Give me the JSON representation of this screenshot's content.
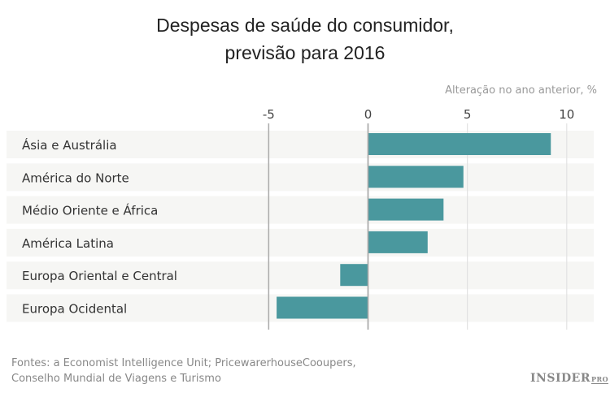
{
  "chart_data": {
    "type": "bar",
    "orientation": "horizontal",
    "title_lines": [
      "Despesas de saúde do consumidor,",
      "previsão para 2016"
    ],
    "xlabel": "Alteração no ano anterior, %",
    "xlim": [
      -5,
      10
    ],
    "xticks": [
      -5,
      0,
      5,
      10
    ],
    "categories": [
      "Ásia e Austrália",
      "América do Norte",
      "Médio Oriente e África",
      "América Latina",
      "Europa Oriental e Central",
      "Europa Ocidental"
    ],
    "values": [
      9.2,
      4.8,
      3.8,
      3.0,
      -1.4,
      -4.6
    ],
    "grid": true,
    "bar_color": "#4a989e",
    "band_color": "#f6f6f4"
  },
  "source": [
    "Fontes: a Economist Intelligence Unit; PricewarerhouseCooupers,",
    "Conselho Mundial de Viagens e Turismo"
  ],
  "logo": {
    "main": "INSIDER",
    "sub": "PRO"
  }
}
